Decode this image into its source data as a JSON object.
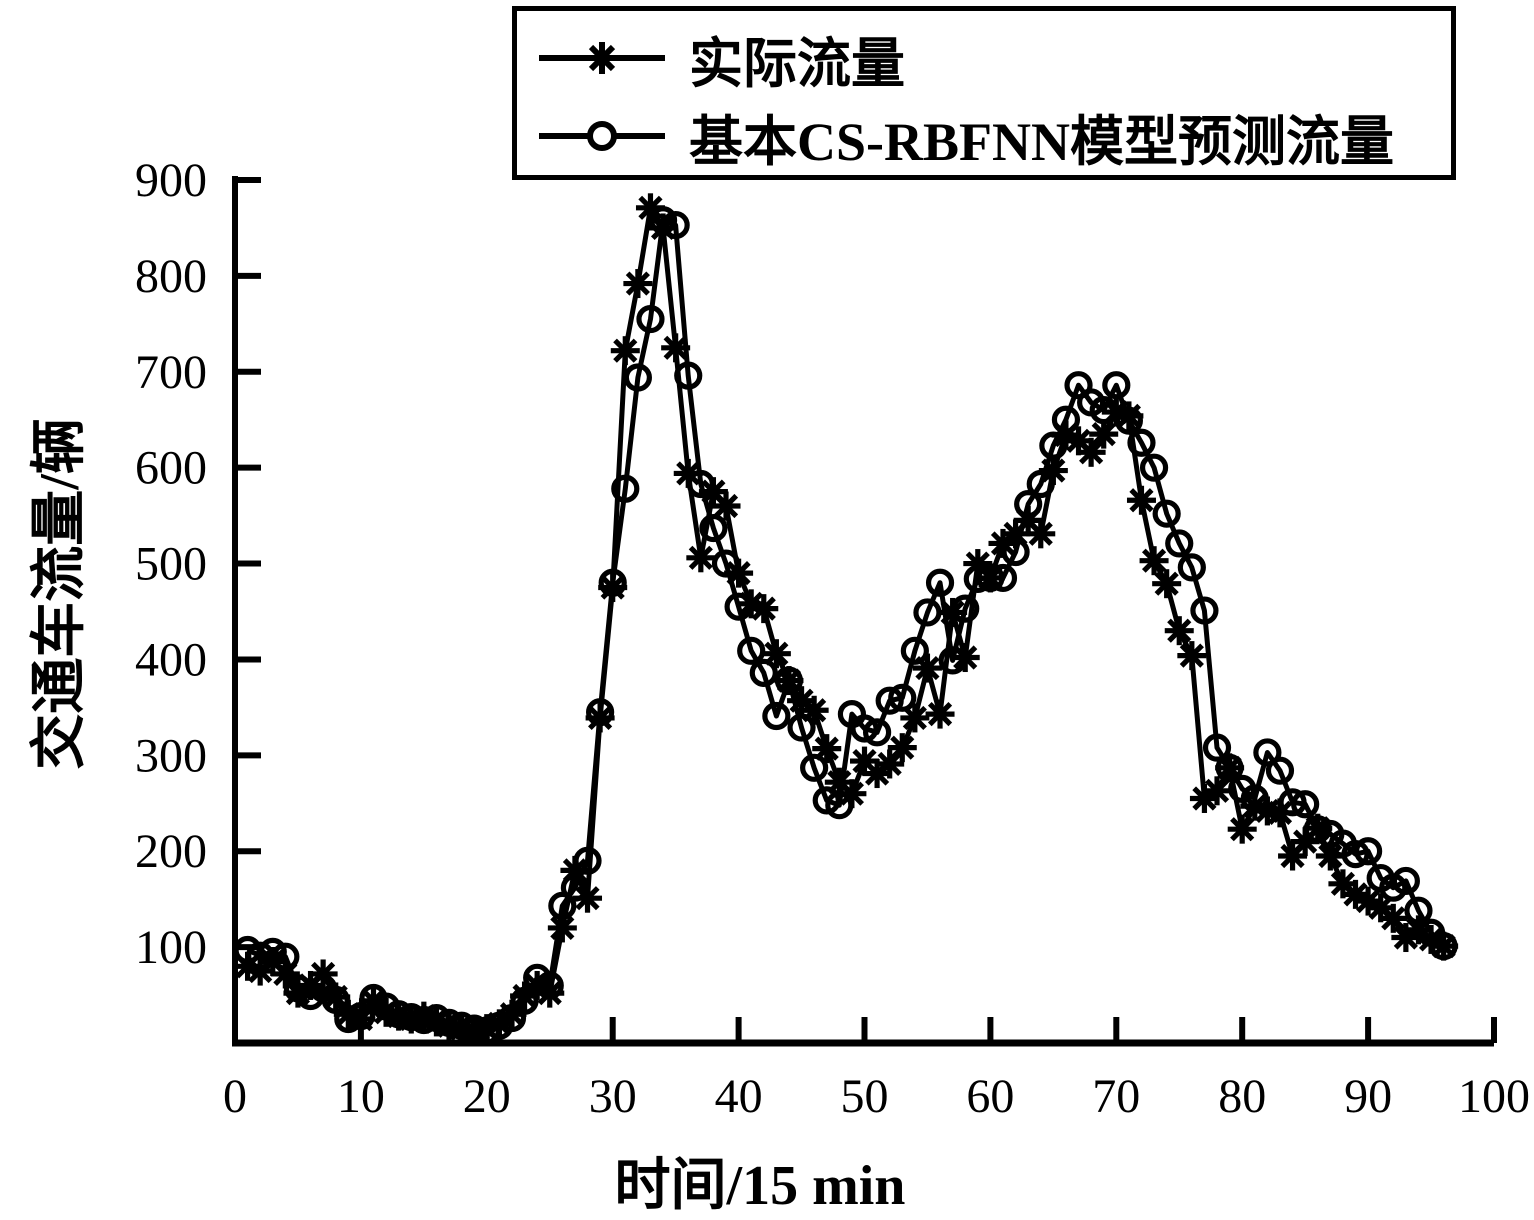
{
  "figure": {
    "background": "#ffffff",
    "ink_color": "#000000"
  },
  "chart_data": {
    "type": "line",
    "title": "",
    "xlabel": "时间/15 min",
    "ylabel": "交通车流量/辆",
    "xlim": [
      0,
      100
    ],
    "ylim": [
      0,
      900
    ],
    "x_ticks": [
      0,
      10,
      20,
      30,
      40,
      50,
      60,
      70,
      80,
      90,
      100
    ],
    "y_ticks": [
      100,
      200,
      300,
      400,
      500,
      600,
      700,
      800,
      900
    ],
    "grid": false,
    "legend_position": "top",
    "x_start": 1,
    "series": [
      {
        "name": "实际流量",
        "marker": "asterisk",
        "color": "#000000",
        "values": [
          80,
          75,
          85,
          72,
          52,
          60,
          72,
          48,
          30,
          25,
          44,
          32,
          28,
          25,
          28,
          22,
          18,
          15,
          12,
          15,
          20,
          30,
          49,
          60,
          52,
          120,
          180,
          151,
          339,
          475,
          722,
          792,
          871,
          850,
          725,
          594,
          506,
          575,
          560,
          490,
          458,
          453,
          406,
          378,
          357,
          347,
          307,
          272,
          260,
          294,
          281,
          291,
          308,
          339,
          391,
          343,
          449,
          402,
          500,
          485,
          521,
          531,
          545,
          531,
          597,
          634,
          628,
          616,
          635,
          658,
          654,
          566,
          503,
          479,
          430,
          404,
          255,
          263,
          287,
          223,
          247,
          242,
          240,
          195,
          210,
          224,
          195,
          166,
          155,
          148,
          141,
          130,
          110,
          118,
          108,
          101
        ]
      },
      {
        "name": "基本CS-RBFNN模型预测流量",
        "marker": "circle",
        "color": "#000000",
        "values": [
          97,
          91,
          95,
          90,
          57,
          49,
          57,
          45,
          25,
          28,
          47,
          38,
          30,
          27,
          24,
          26,
          21,
          18,
          15,
          13,
          18,
          26,
          44,
          68,
          60,
          143,
          162,
          190,
          345,
          480,
          578,
          694,
          755,
          858,
          853,
          696,
          583,
          537,
          500,
          455,
          409,
          386,
          341,
          378,
          329,
          287,
          253,
          248,
          343,
          328,
          324,
          357,
          360,
          409,
          449,
          480,
          399,
          453,
          484,
          485,
          485,
          512,
          562,
          583,
          623,
          650,
          686,
          668,
          660,
          686,
          649,
          626,
          600,
          552,
          521,
          496,
          451,
          308,
          287,
          265,
          255,
          303,
          284,
          251,
          249,
          223,
          218,
          208,
          197,
          200,
          172,
          162,
          169,
          138,
          115,
          101
        ]
      }
    ]
  }
}
